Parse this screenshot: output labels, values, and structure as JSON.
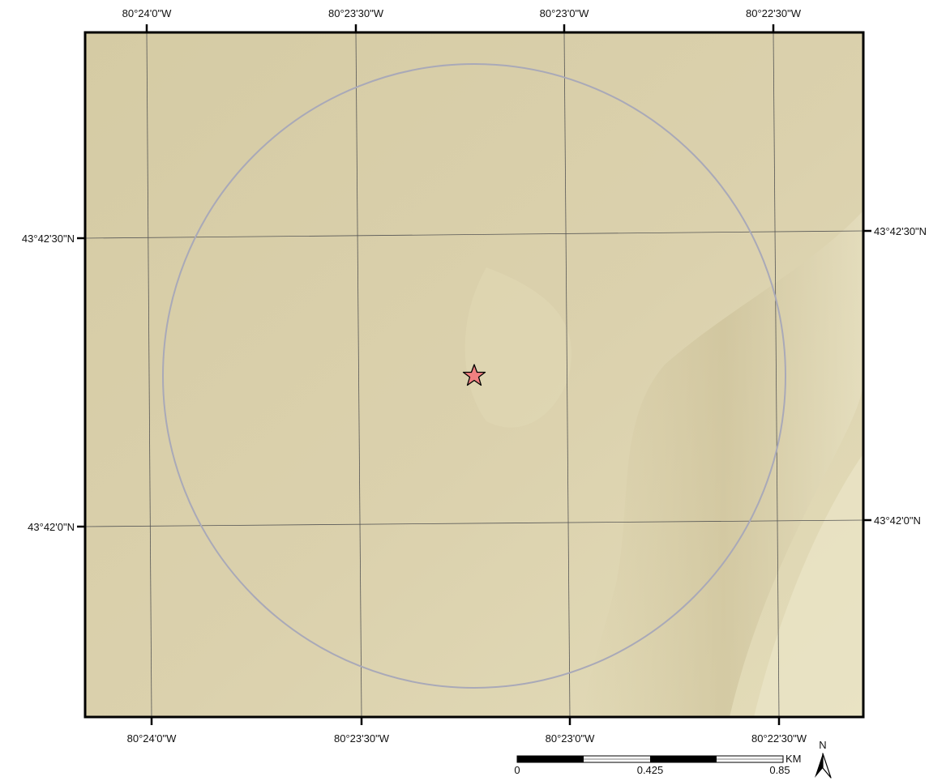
{
  "map": {
    "top_lon_labels": [
      "80°24'0\"W",
      "80°23'30\"W",
      "80°23'0\"W",
      "80°22'30\"W"
    ],
    "bottom_lon_labels": [
      "80°24'0\"W",
      "80°23'30\"W",
      "80°23'0\"W",
      "80°22'30\"W"
    ],
    "left_lat_labels": [
      "43°42'30\"N",
      "43°42'0\"N"
    ],
    "right_lat_labels": [
      "43°42'30\"N",
      "43°42'0\"N"
    ],
    "colors": {
      "background": "#d9cfa9",
      "buffer_circle": "#a9a9b8",
      "graticule": "#555555",
      "star_fill": "#f08080",
      "frame": "#000000"
    }
  },
  "scale_bar": {
    "unit": "KM",
    "labels": [
      "0",
      "0.425",
      "0.85"
    ]
  },
  "north_arrow": {
    "label": "N"
  }
}
